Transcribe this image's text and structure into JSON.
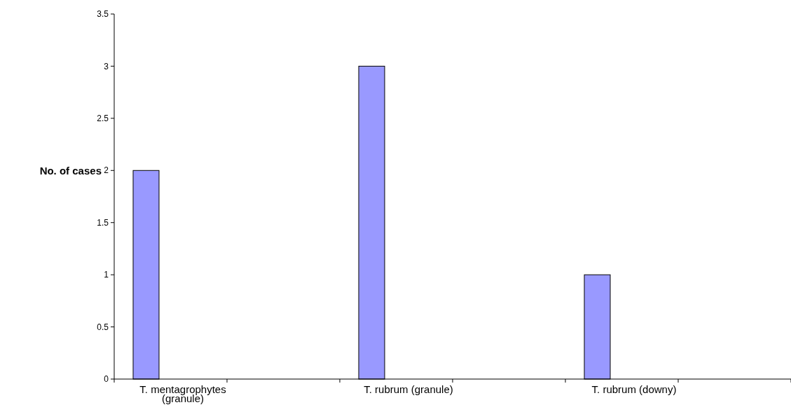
{
  "chart_data": {
    "type": "bar",
    "ylabel": "No. of cases",
    "categories": [
      "T. mentagrophytes (granule)",
      "T. rubrum (granule)",
      "T. rubrum (downy)"
    ],
    "values": [
      2,
      3,
      1
    ],
    "color": "#9999ff",
    "ylim": [
      0,
      3.5
    ],
    "yticks": [
      0,
      0.5,
      1,
      1.5,
      2,
      2.5,
      3,
      3.5
    ],
    "grid": false
  }
}
